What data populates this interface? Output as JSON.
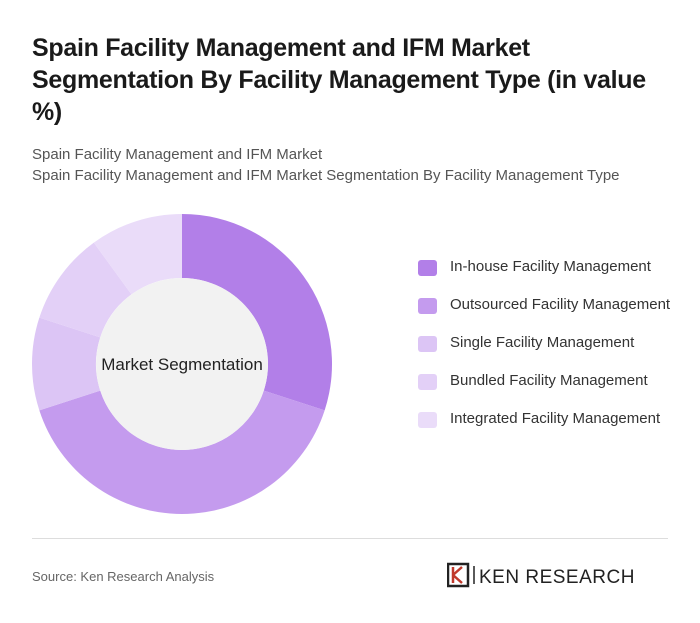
{
  "chart_data": {
    "type": "donut",
    "title": "Spain Facility Management and IFM Market Segmentation By Facility Management Type (in value %)",
    "subtitle": "Spain Facility Management and IFM Market",
    "subtitle2": "Spain Facility Management and IFM Market Segmentation By Facility Management Type",
    "center_label": "Market Segmentation",
    "categories": [
      "In-house Facility Management",
      "Outsourced Facility Management",
      "Single Facility Management",
      "Bundled Facility Management",
      "Integrated Facility Management"
    ],
    "values": [
      30,
      40,
      10,
      10,
      10
    ],
    "colors": [
      "#b27fe8",
      "#c49bee",
      "#dcc5f5",
      "#e3d0f7",
      "#eadcf9"
    ],
    "source": "Source: Ken Research Analysis",
    "brand": "KEN RESEARCH"
  }
}
